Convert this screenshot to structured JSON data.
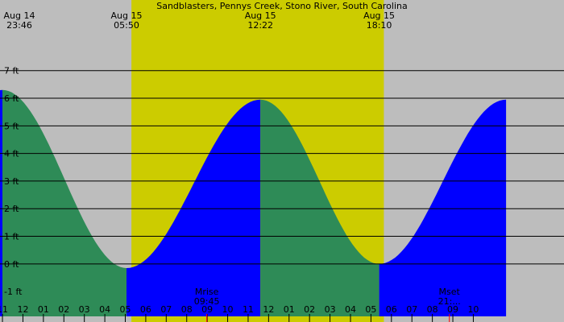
{
  "chart_data": {
    "type": "area",
    "title": "Sandblasters, Pennys Creek, Stono River, South Carolina",
    "xlabel": "",
    "ylabel": "",
    "y_unit": "ft",
    "ylim": [
      -1.9,
      8.1
    ],
    "xlim": [
      -0.35,
      27.2
    ],
    "grid": true,
    "y_ticks": [
      -1,
      0,
      1,
      2,
      3,
      4,
      5,
      6,
      7
    ],
    "y_tick_labels": [
      "-1 ft",
      "0 ft",
      "1 ft",
      "2 ft",
      "3 ft",
      "4 ft",
      "5 ft",
      "6 ft",
      "7 ft"
    ],
    "x_ticks": [
      -0.23,
      0.77,
      1.77,
      2.77,
      3.77,
      4.77,
      5.77,
      6.77,
      7.77,
      8.77,
      9.77,
      10.77,
      11.77,
      12.77,
      13.77,
      14.77,
      15.77,
      16.77,
      17.77,
      18.77,
      19.77,
      20.77,
      21.77,
      22.77
    ],
    "x_tick_labels": [
      "11",
      "12",
      "01",
      "02",
      "03",
      "04",
      "05",
      "06",
      "07",
      "08",
      "09",
      "10",
      "11",
      "12",
      "01",
      "02",
      "03",
      "04",
      "05",
      "06",
      "07",
      "08",
      "09",
      "10"
    ],
    "daylight": [
      {
        "start": 6.07,
        "end": 18.4
      }
    ],
    "colors": {
      "night": "#bdbdbd",
      "day": "#cccc00",
      "rising": "#0000ff",
      "falling": "#2e8b57",
      "grid": "#000000",
      "moon_marker": "#ff0000"
    },
    "tides": [
      {
        "label_date": "Aug 14",
        "label_time": "23:46",
        "hour": -0.23,
        "height": 6.3,
        "type": "high"
      },
      {
        "label_date": "Aug 15",
        "label_time": "05:50",
        "hour": 5.83,
        "height": -0.15,
        "type": "low"
      },
      {
        "label_date": "Aug 15",
        "label_time": "12:22",
        "hour": 12.37,
        "height": 5.95,
        "type": "high"
      },
      {
        "label_date": "Aug 15",
        "label_time": "18:10",
        "hour": 18.17,
        "height": 0.0,
        "type": "low"
      }
    ],
    "moon_events": [
      {
        "label": "Mrise",
        "time": "09:45",
        "hour": 9.75
      },
      {
        "label": "Mset",
        "time": "21:...",
        "hour": 21.6
      }
    ]
  }
}
